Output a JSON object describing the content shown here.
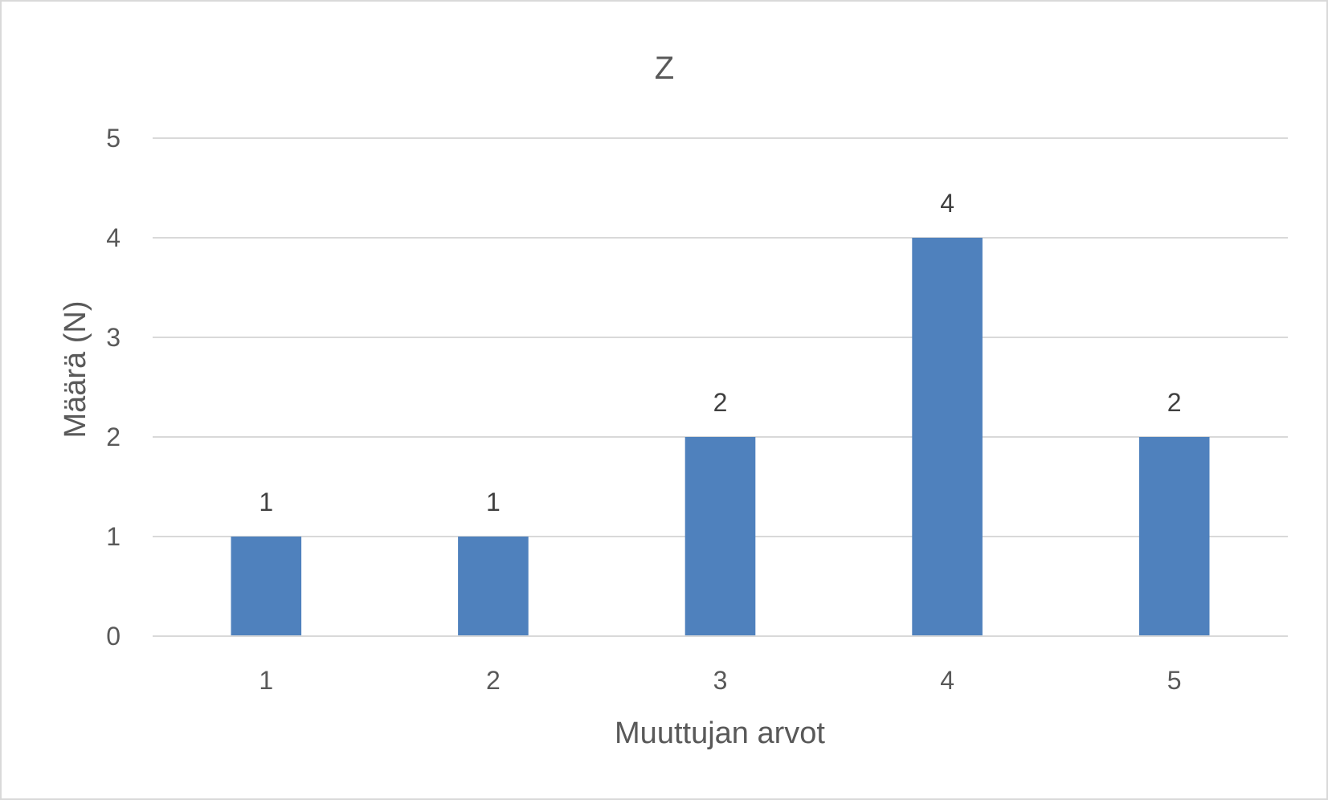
{
  "chart_data": {
    "type": "bar",
    "title": "Z",
    "xlabel": "Muuttujan arvot",
    "ylabel": "Määrä (N)",
    "categories": [
      "1",
      "2",
      "3",
      "4",
      "5"
    ],
    "values": [
      1,
      1,
      2,
      4,
      2
    ],
    "data_labels": [
      "1",
      "1",
      "2",
      "4",
      "2"
    ],
    "ylim": [
      0,
      5
    ],
    "yticks": [
      "0",
      "1",
      "2",
      "3",
      "4",
      "5"
    ],
    "grid": true,
    "legend": "none",
    "bar_color": "#4f81bd"
  }
}
